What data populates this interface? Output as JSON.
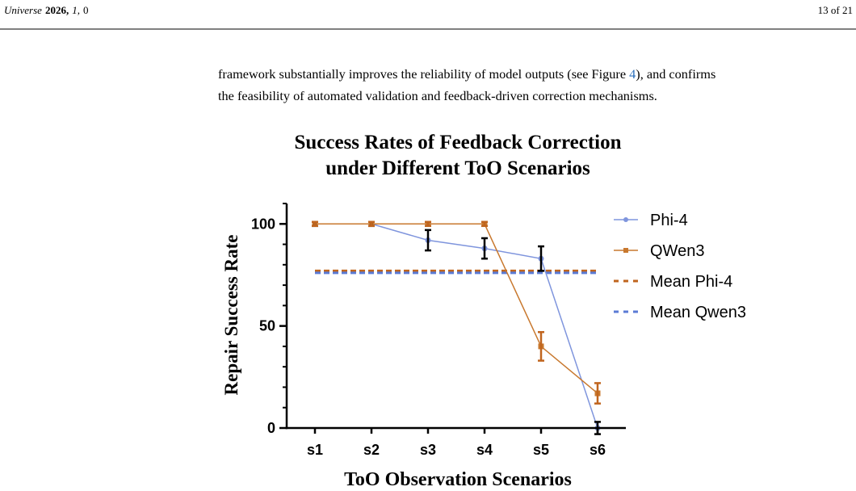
{
  "header": {
    "citation_parts": [
      "Universe",
      "2026,",
      "1,",
      "0"
    ],
    "page": "13 of 21"
  },
  "body": {
    "lines": [
      [
        "framework substantially improves the reliability of model outputs (see Figure ",
        "4",
        "), and confirms"
      ],
      [
        "the feasibility of automated validation and feedback-driven correction mechanisms."
      ]
    ]
  },
  "chart_data": {
    "type": "line",
    "title": [
      "Success Rates of Feedback Correction",
      "under Different ToO Scenarios"
    ],
    "x_label": "ToO Observation Scenarios",
    "y_label": "Repair Success Rate",
    "categories": [
      "s1",
      "s2",
      "s3",
      "s4",
      "s5",
      "s6"
    ],
    "series": [
      {
        "name": "Phi-4",
        "color": "#7f95dd",
        "marker": "circle",
        "values": [
          100,
          100,
          92,
          88,
          83,
          0
        ],
        "errors": [
          1,
          1,
          5,
          5,
          6,
          3
        ],
        "error_color": "#000000"
      },
      {
        "name": "QWen3",
        "color": "#c8782e",
        "marker": "square",
        "values": [
          100,
          100,
          100,
          100,
          40,
          17
        ],
        "errors": [
          1,
          1,
          1,
          1,
          7,
          5
        ],
        "error_color": "#c0651e"
      }
    ],
    "reference_lines": [
      {
        "name": "Mean Phi-4",
        "color": "#c0651e",
        "value": 77
      },
      {
        "name": "Mean Qwen3",
        "color": "#5b7bd5",
        "value": 76
      }
    ],
    "ylim": [
      0,
      110
    ],
    "yticks": [
      0,
      50,
      100
    ],
    "y_minor_ticks": [
      10,
      20,
      30,
      40,
      60,
      70,
      80,
      90,
      110
    ],
    "legend": "right"
  }
}
